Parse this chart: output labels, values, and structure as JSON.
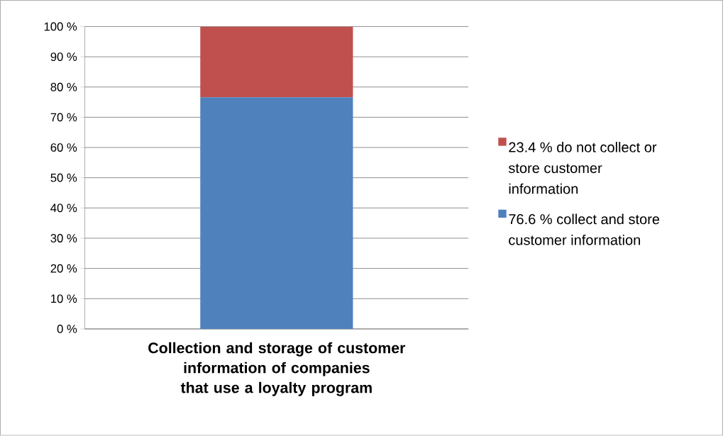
{
  "chart_data": {
    "type": "bar",
    "stacked": true,
    "categories": [
      "Collection and storage of customer information of companies that use a loyalty program"
    ],
    "series": [
      {
        "name": "76.6 % collect and store customer information",
        "color": "#4f81bd",
        "values": [
          76.6
        ]
      },
      {
        "name": "23.4 % do not collect or store customer information",
        "color": "#c0504d",
        "values": [
          23.4
        ]
      }
    ],
    "ylim": [
      0,
      100
    ],
    "yticks": [
      {
        "value": 0,
        "label": "0 %"
      },
      {
        "value": 10,
        "label": "10 %"
      },
      {
        "value": 20,
        "label": "20 %"
      },
      {
        "value": 30,
        "label": "30 %"
      },
      {
        "value": 40,
        "label": "40 %"
      },
      {
        "value": 50,
        "label": "50 %"
      },
      {
        "value": 60,
        "label": "60 %"
      },
      {
        "value": 70,
        "label": "70 %"
      },
      {
        "value": 80,
        "label": "80 %"
      },
      {
        "value": 90,
        "label": "90 %"
      },
      {
        "value": 100,
        "label": "100 %"
      }
    ],
    "grid": "y",
    "legend": "right"
  }
}
